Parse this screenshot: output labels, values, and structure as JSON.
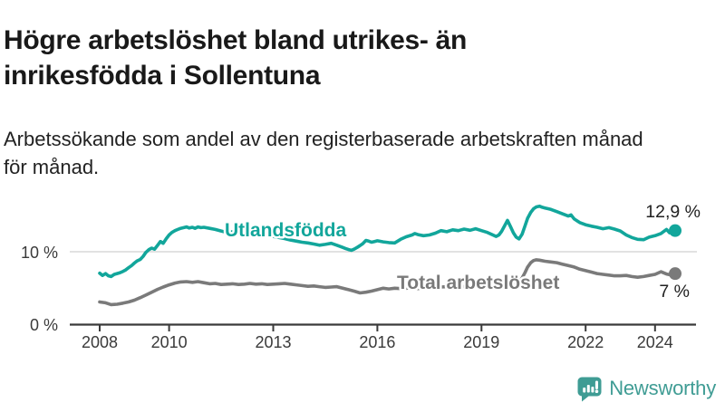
{
  "header": {
    "title": "Högre arbetslöshet bland utrikes- än inrikesfödda i Sollentuna",
    "subtitle": "Arbetssökande som andel av den registerbaserade arbetskraften månad för månad."
  },
  "chart_data": {
    "type": "line",
    "title": "Högre arbetslöshet bland utrikes- än inrikesfödda i Sollentuna",
    "xlabel": "",
    "ylabel": "",
    "unit": "%",
    "x_range": [
      2008,
      2024.75
    ],
    "ylim": [
      0,
      18
    ],
    "grid": "single-horizontal-line-at-10",
    "grid_values": [
      10
    ],
    "y_ticks": [
      {
        "value": 0,
        "label": "0 %"
      },
      {
        "value": 10,
        "label": "10 %"
      }
    ],
    "x_ticks": [
      {
        "value": 2008,
        "label": "2008"
      },
      {
        "value": 2010,
        "label": "2010"
      },
      {
        "value": 2013,
        "label": "2013"
      },
      {
        "value": 2016,
        "label": "2016"
      },
      {
        "value": 2019,
        "label": "2019"
      },
      {
        "value": 2022,
        "label": "2022"
      },
      {
        "value": 2024,
        "label": "2024"
      }
    ],
    "axis_color": "#3a3a3a",
    "gridline_color": "#d8d8d8",
    "series": [
      {
        "name": "Utlandsfödda",
        "color": "#12a69b",
        "end_label": "12,9 %",
        "end_value": 12.9,
        "points": [
          [
            2008.0,
            7.05
          ],
          [
            2008.08,
            6.75
          ],
          [
            2008.17,
            7.0
          ],
          [
            2008.25,
            6.7
          ],
          [
            2008.33,
            6.6
          ],
          [
            2008.42,
            6.9
          ],
          [
            2008.5,
            7.0
          ],
          [
            2008.58,
            7.1
          ],
          [
            2008.67,
            7.3
          ],
          [
            2008.75,
            7.5
          ],
          [
            2008.83,
            7.8
          ],
          [
            2008.92,
            8.1
          ],
          [
            2009.0,
            8.45
          ],
          [
            2009.08,
            8.75
          ],
          [
            2009.17,
            8.95
          ],
          [
            2009.25,
            9.35
          ],
          [
            2009.33,
            9.9
          ],
          [
            2009.42,
            10.3
          ],
          [
            2009.5,
            10.5
          ],
          [
            2009.58,
            10.35
          ],
          [
            2009.67,
            10.9
          ],
          [
            2009.75,
            11.4
          ],
          [
            2009.83,
            11.15
          ],
          [
            2009.92,
            11.8
          ],
          [
            2010.0,
            12.3
          ],
          [
            2010.08,
            12.65
          ],
          [
            2010.17,
            12.9
          ],
          [
            2010.25,
            13.05
          ],
          [
            2010.33,
            13.2
          ],
          [
            2010.42,
            13.3
          ],
          [
            2010.5,
            13.4
          ],
          [
            2010.58,
            13.25
          ],
          [
            2010.67,
            13.35
          ],
          [
            2010.75,
            13.2
          ],
          [
            2010.83,
            13.4
          ],
          [
            2010.92,
            13.3
          ],
          [
            2011.0,
            13.35
          ],
          [
            2011.17,
            13.2
          ],
          [
            2011.33,
            13.05
          ],
          [
            2011.5,
            12.85
          ],
          [
            2011.67,
            12.65
          ],
          [
            2011.83,
            12.75
          ],
          [
            2012.0,
            12.55
          ],
          [
            2012.17,
            12.45
          ],
          [
            2012.33,
            12.3
          ],
          [
            2012.5,
            12.2
          ],
          [
            2012.67,
            12.35
          ],
          [
            2012.83,
            12.25
          ],
          [
            2013.0,
            12.1
          ],
          [
            2013.17,
            11.95
          ],
          [
            2013.33,
            11.8
          ],
          [
            2013.5,
            11.6
          ],
          [
            2013.67,
            11.45
          ],
          [
            2013.83,
            11.3
          ],
          [
            2014.0,
            11.2
          ],
          [
            2014.17,
            11.05
          ],
          [
            2014.33,
            10.9
          ],
          [
            2014.5,
            11.0
          ],
          [
            2014.67,
            11.15
          ],
          [
            2014.83,
            10.9
          ],
          [
            2015.0,
            10.6
          ],
          [
            2015.08,
            10.45
          ],
          [
            2015.17,
            10.3
          ],
          [
            2015.25,
            10.2
          ],
          [
            2015.33,
            10.35
          ],
          [
            2015.42,
            10.6
          ],
          [
            2015.5,
            10.85
          ],
          [
            2015.58,
            11.1
          ],
          [
            2015.67,
            11.55
          ],
          [
            2015.75,
            11.45
          ],
          [
            2015.83,
            11.3
          ],
          [
            2015.92,
            11.4
          ],
          [
            2016.0,
            11.5
          ],
          [
            2016.17,
            11.35
          ],
          [
            2016.33,
            11.25
          ],
          [
            2016.5,
            11.2
          ],
          [
            2016.67,
            11.7
          ],
          [
            2016.83,
            12.05
          ],
          [
            2017.0,
            12.3
          ],
          [
            2017.08,
            12.5
          ],
          [
            2017.17,
            12.35
          ],
          [
            2017.33,
            12.2
          ],
          [
            2017.5,
            12.3
          ],
          [
            2017.67,
            12.55
          ],
          [
            2017.83,
            12.9
          ],
          [
            2018.0,
            12.75
          ],
          [
            2018.17,
            13.0
          ],
          [
            2018.33,
            12.9
          ],
          [
            2018.5,
            13.1
          ],
          [
            2018.67,
            12.95
          ],
          [
            2018.83,
            13.15
          ],
          [
            2019.0,
            12.9
          ],
          [
            2019.17,
            12.65
          ],
          [
            2019.33,
            12.3
          ],
          [
            2019.42,
            12.1
          ],
          [
            2019.5,
            12.3
          ],
          [
            2019.58,
            12.8
          ],
          [
            2019.67,
            13.6
          ],
          [
            2019.75,
            14.3
          ],
          [
            2019.83,
            13.5
          ],
          [
            2019.92,
            12.6
          ],
          [
            2020.0,
            12.0
          ],
          [
            2020.08,
            11.75
          ],
          [
            2020.17,
            12.4
          ],
          [
            2020.25,
            13.5
          ],
          [
            2020.33,
            14.6
          ],
          [
            2020.42,
            15.4
          ],
          [
            2020.5,
            15.9
          ],
          [
            2020.58,
            16.15
          ],
          [
            2020.67,
            16.25
          ],
          [
            2020.75,
            16.1
          ],
          [
            2020.83,
            16.0
          ],
          [
            2020.92,
            15.9
          ],
          [
            2021.0,
            15.8
          ],
          [
            2021.17,
            15.5
          ],
          [
            2021.33,
            15.2
          ],
          [
            2021.5,
            14.9
          ],
          [
            2021.58,
            15.05
          ],
          [
            2021.67,
            14.5
          ],
          [
            2021.83,
            14.0
          ],
          [
            2022.0,
            13.7
          ],
          [
            2022.17,
            13.5
          ],
          [
            2022.33,
            13.35
          ],
          [
            2022.5,
            13.15
          ],
          [
            2022.67,
            13.3
          ],
          [
            2022.83,
            13.1
          ],
          [
            2023.0,
            12.85
          ],
          [
            2023.17,
            12.3
          ],
          [
            2023.33,
            11.95
          ],
          [
            2023.5,
            11.7
          ],
          [
            2023.67,
            11.65
          ],
          [
            2023.83,
            12.0
          ],
          [
            2024.0,
            12.2
          ],
          [
            2024.17,
            12.5
          ],
          [
            2024.33,
            13.05
          ],
          [
            2024.42,
            12.6
          ],
          [
            2024.58,
            12.9
          ]
        ]
      },
      {
        "name": "Total arbetslöshet",
        "color": "#7a7a7a",
        "end_label": "7 %",
        "end_value": 7.0,
        "points": [
          [
            2008.0,
            3.1
          ],
          [
            2008.17,
            3.0
          ],
          [
            2008.33,
            2.75
          ],
          [
            2008.5,
            2.8
          ],
          [
            2008.67,
            2.95
          ],
          [
            2008.83,
            3.1
          ],
          [
            2009.0,
            3.35
          ],
          [
            2009.17,
            3.7
          ],
          [
            2009.33,
            4.05
          ],
          [
            2009.5,
            4.45
          ],
          [
            2009.67,
            4.85
          ],
          [
            2009.83,
            5.15
          ],
          [
            2010.0,
            5.45
          ],
          [
            2010.17,
            5.7
          ],
          [
            2010.33,
            5.85
          ],
          [
            2010.5,
            5.9
          ],
          [
            2010.67,
            5.8
          ],
          [
            2010.83,
            5.9
          ],
          [
            2011.0,
            5.75
          ],
          [
            2011.17,
            5.6
          ],
          [
            2011.33,
            5.65
          ],
          [
            2011.5,
            5.5
          ],
          [
            2011.67,
            5.55
          ],
          [
            2011.83,
            5.6
          ],
          [
            2012.0,
            5.5
          ],
          [
            2012.17,
            5.55
          ],
          [
            2012.33,
            5.65
          ],
          [
            2012.5,
            5.55
          ],
          [
            2012.67,
            5.6
          ],
          [
            2012.83,
            5.5
          ],
          [
            2013.0,
            5.55
          ],
          [
            2013.17,
            5.6
          ],
          [
            2013.33,
            5.65
          ],
          [
            2013.5,
            5.55
          ],
          [
            2013.67,
            5.45
          ],
          [
            2013.83,
            5.35
          ],
          [
            2014.0,
            5.25
          ],
          [
            2014.17,
            5.3
          ],
          [
            2014.33,
            5.2
          ],
          [
            2014.5,
            5.1
          ],
          [
            2014.67,
            5.15
          ],
          [
            2014.83,
            5.2
          ],
          [
            2015.0,
            5.0
          ],
          [
            2015.17,
            4.8
          ],
          [
            2015.33,
            4.6
          ],
          [
            2015.5,
            4.35
          ],
          [
            2015.67,
            4.45
          ],
          [
            2015.83,
            4.6
          ],
          [
            2016.0,
            4.8
          ],
          [
            2016.17,
            5.0
          ],
          [
            2016.33,
            4.9
          ],
          [
            2016.5,
            5.0
          ],
          [
            2016.67,
            4.95
          ],
          [
            2016.83,
            5.0
          ],
          [
            2017.0,
            5.05
          ],
          [
            2017.17,
            4.95
          ],
          [
            2017.33,
            5.05
          ],
          [
            2017.5,
            5.1
          ],
          [
            2017.67,
            5.05
          ],
          [
            2017.83,
            5.15
          ],
          [
            2018.0,
            5.2
          ],
          [
            2018.17,
            5.15
          ],
          [
            2018.33,
            5.25
          ],
          [
            2018.5,
            5.2
          ],
          [
            2018.67,
            5.3
          ],
          [
            2018.83,
            5.35
          ],
          [
            2019.0,
            5.3
          ],
          [
            2019.17,
            5.4
          ],
          [
            2019.33,
            5.45
          ],
          [
            2019.5,
            5.4
          ],
          [
            2019.67,
            5.5
          ],
          [
            2019.83,
            5.6
          ],
          [
            2020.0,
            5.75
          ],
          [
            2020.08,
            5.9
          ],
          [
            2020.17,
            6.4
          ],
          [
            2020.25,
            7.1
          ],
          [
            2020.33,
            7.9
          ],
          [
            2020.42,
            8.5
          ],
          [
            2020.5,
            8.8
          ],
          [
            2020.58,
            8.9
          ],
          [
            2020.67,
            8.85
          ],
          [
            2020.83,
            8.7
          ],
          [
            2021.0,
            8.6
          ],
          [
            2021.17,
            8.5
          ],
          [
            2021.33,
            8.3
          ],
          [
            2021.5,
            8.1
          ],
          [
            2021.67,
            7.9
          ],
          [
            2021.83,
            7.6
          ],
          [
            2022.0,
            7.4
          ],
          [
            2022.17,
            7.2
          ],
          [
            2022.33,
            7.0
          ],
          [
            2022.5,
            6.9
          ],
          [
            2022.67,
            6.8
          ],
          [
            2022.83,
            6.7
          ],
          [
            2023.0,
            6.7
          ],
          [
            2023.17,
            6.75
          ],
          [
            2023.33,
            6.6
          ],
          [
            2023.5,
            6.5
          ],
          [
            2023.67,
            6.6
          ],
          [
            2023.83,
            6.75
          ],
          [
            2024.0,
            6.9
          ],
          [
            2024.17,
            7.25
          ],
          [
            2024.33,
            6.95
          ],
          [
            2024.42,
            6.85
          ],
          [
            2024.58,
            7.0
          ]
        ]
      }
    ],
    "legend_position": "labels-on-chart"
  },
  "logo": {
    "name": "Newsworthy",
    "color": "#3f9c94",
    "icon": "bar-chart-speech-bubble"
  }
}
